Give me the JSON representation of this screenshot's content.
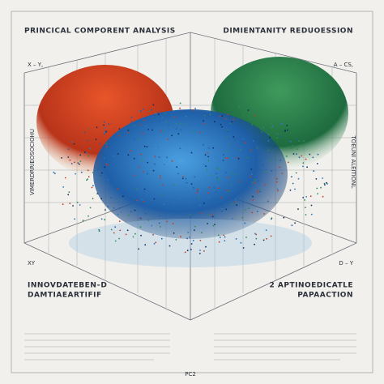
{
  "header": {
    "left_title": "PRINCICAL COMPORENT ANALYSIS",
    "right_title": "DIMIENTANITY REDUOESSION"
  },
  "axes": {
    "top_left": "X – Y,",
    "top_right": "A – CS,",
    "left_vertical": "VIMERDRRIEOSOCIOHU",
    "right_vertical": "TOEUNI ALEITIONL",
    "bottom_left": "XY",
    "bottom_right": "D – Y",
    "bottom_center": "PC2"
  },
  "captions": {
    "left": [
      "INNOVDATEBEN–D",
      "DAMTIAEARTIFIF"
    ],
    "right": [
      "2 APTINOEDICATLE",
      "PAPAACTION"
    ]
  }
}
